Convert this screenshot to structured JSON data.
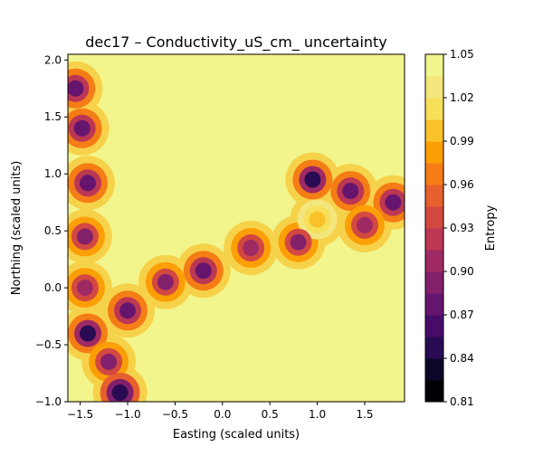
{
  "chart_data": {
    "type": "heatmap",
    "subtype": "filled-contour",
    "title": "dec17 – Conductivity_uS_cm_ uncertainty",
    "xlabel": "Easting (scaled units)",
    "ylabel": "Northing (scaled units)",
    "colorbar_label": "Entropy",
    "xlim": [
      -1.63,
      1.92
    ],
    "ylim": [
      -1.0,
      2.05
    ],
    "xticks": [
      -1.5,
      -1.0,
      -0.5,
      0.0,
      0.5,
      1.0,
      1.5
    ],
    "xtick_labels": [
      "−1.5",
      "−1.0",
      "−0.5",
      "0.0",
      "0.5",
      "1.0",
      "1.5"
    ],
    "yticks": [
      -1.0,
      -0.5,
      0.0,
      0.5,
      1.0,
      1.5,
      2.0
    ],
    "ytick_labels": [
      "−1.0",
      "−0.5",
      "0.0",
      "0.5",
      "1.0",
      "1.5",
      "2.0"
    ],
    "colorbar_range": [
      0.81,
      1.05
    ],
    "colorbar_ticks": [
      0.81,
      0.84,
      0.87,
      0.9,
      0.93,
      0.96,
      0.99,
      1.02,
      1.05
    ],
    "colorbar_tick_labels": [
      "0.81",
      "0.84",
      "0.87",
      "0.90",
      "0.93",
      "0.96",
      "0.99",
      "1.02",
      "1.05"
    ],
    "levels": [
      0.81,
      0.825,
      0.84,
      0.855,
      0.87,
      0.885,
      0.9,
      0.915,
      0.93,
      0.945,
      0.96,
      0.975,
      0.99,
      1.005,
      1.02,
      1.035,
      1.05
    ],
    "level_colors": [
      "#000004",
      "#0d0829",
      "#280b53",
      "#470b6a",
      "#65156e",
      "#82206c",
      "#9f2a63",
      "#bb3754",
      "#d44842",
      "#e8602d",
      "#f57d15",
      "#fc9f07",
      "#fac228",
      "#f6e05a",
      "#f2e67c",
      "#f2f58c"
    ],
    "colormap": "inferno",
    "background_value": 1.05,
    "features": [
      {
        "x": -1.55,
        "y": 1.75,
        "value": 0.87
      },
      {
        "x": -1.48,
        "y": 1.4,
        "value": 0.88
      },
      {
        "x": -1.42,
        "y": 0.92,
        "value": 0.87
      },
      {
        "x": -1.45,
        "y": 0.45,
        "value": 0.89
      },
      {
        "x": -1.45,
        "y": 0.0,
        "value": 0.9
      },
      {
        "x": -1.42,
        "y": -0.4,
        "value": 0.85
      },
      {
        "x": -1.2,
        "y": -0.65,
        "value": 0.89
      },
      {
        "x": -1.08,
        "y": -0.92,
        "value": 0.84
      },
      {
        "x": -1.0,
        "y": -0.2,
        "value": 0.88
      },
      {
        "x": -0.6,
        "y": 0.05,
        "value": 0.89
      },
      {
        "x": -0.2,
        "y": 0.15,
        "value": 0.88
      },
      {
        "x": 0.3,
        "y": 0.35,
        "value": 0.9
      },
      {
        "x": 0.95,
        "y": 0.95,
        "value": 0.85
      },
      {
        "x": 1.35,
        "y": 0.85,
        "value": 0.88
      },
      {
        "x": 1.8,
        "y": 0.75,
        "value": 0.87
      },
      {
        "x": 0.8,
        "y": 0.4,
        "value": 0.89
      },
      {
        "x": 1.5,
        "y": 0.55,
        "value": 0.9
      },
      {
        "x": 1.0,
        "y": 0.6,
        "value": 0.99
      }
    ]
  }
}
